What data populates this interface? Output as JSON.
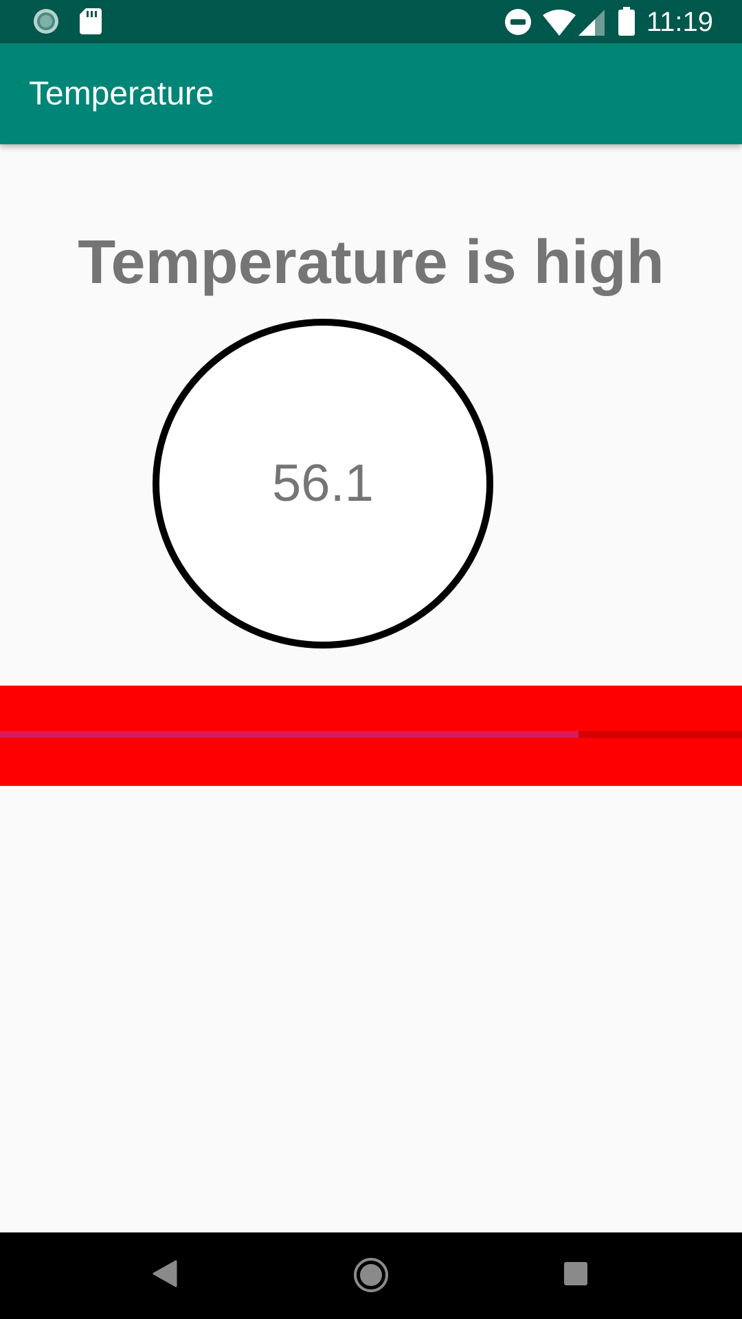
{
  "status_bar": {
    "time": "11:19",
    "icons": [
      "sync-icon",
      "sd-card-icon",
      "do-not-disturb-icon",
      "wifi-icon",
      "cell-signal-icon",
      "battery-icon"
    ]
  },
  "app_bar": {
    "title": "Temperature"
  },
  "main": {
    "headline": "Temperature is high",
    "reading": "56.1",
    "progress_fraction": 0.78
  },
  "colors": {
    "status_bar": "#00574b",
    "app_bar": "#008577",
    "alert": "#ff0000",
    "progress_fill": "#d81b60",
    "text_gray": "#757575"
  },
  "nav_bar": {
    "buttons": [
      "back-icon",
      "home-icon",
      "recents-icon"
    ]
  }
}
